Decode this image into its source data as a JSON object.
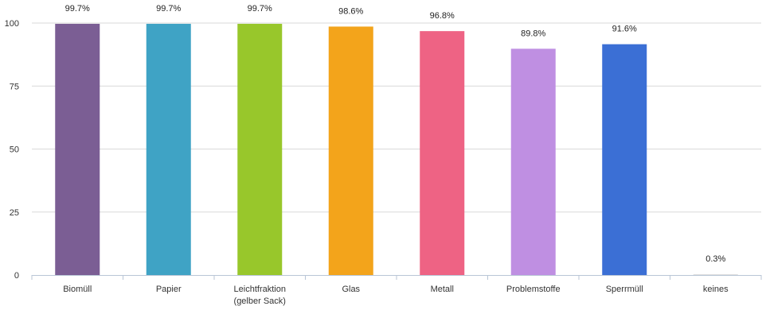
{
  "chart_data": {
    "type": "bar",
    "categories": [
      [
        "Biomüll"
      ],
      [
        "Papier"
      ],
      [
        "Leichtfraktion",
        "(gelber Sack)"
      ],
      [
        "Glas"
      ],
      [
        "Metall"
      ],
      [
        "Problemstoffe"
      ],
      [
        "Sperrmüll"
      ],
      [
        "keines"
      ]
    ],
    "values": [
      99.7,
      99.7,
      99.7,
      98.6,
      96.8,
      89.8,
      91.6,
      0.3
    ],
    "value_labels": [
      "99.7%",
      "99.7%",
      "99.7%",
      "98.6%",
      "96.8%",
      "89.8%",
      "91.6%",
      "0.3%"
    ],
    "colors": [
      "#7b5e94",
      "#3fa3c5",
      "#98c72b",
      "#f3a41b",
      "#ee6384",
      "#bf8fe2",
      "#3b6fd5",
      "#dddddd"
    ],
    "yticks": [
      0,
      25,
      50,
      75,
      100
    ],
    "ylim": [
      0,
      100
    ],
    "grid": true,
    "title": "",
    "xlabel": "",
    "ylabel": ""
  }
}
